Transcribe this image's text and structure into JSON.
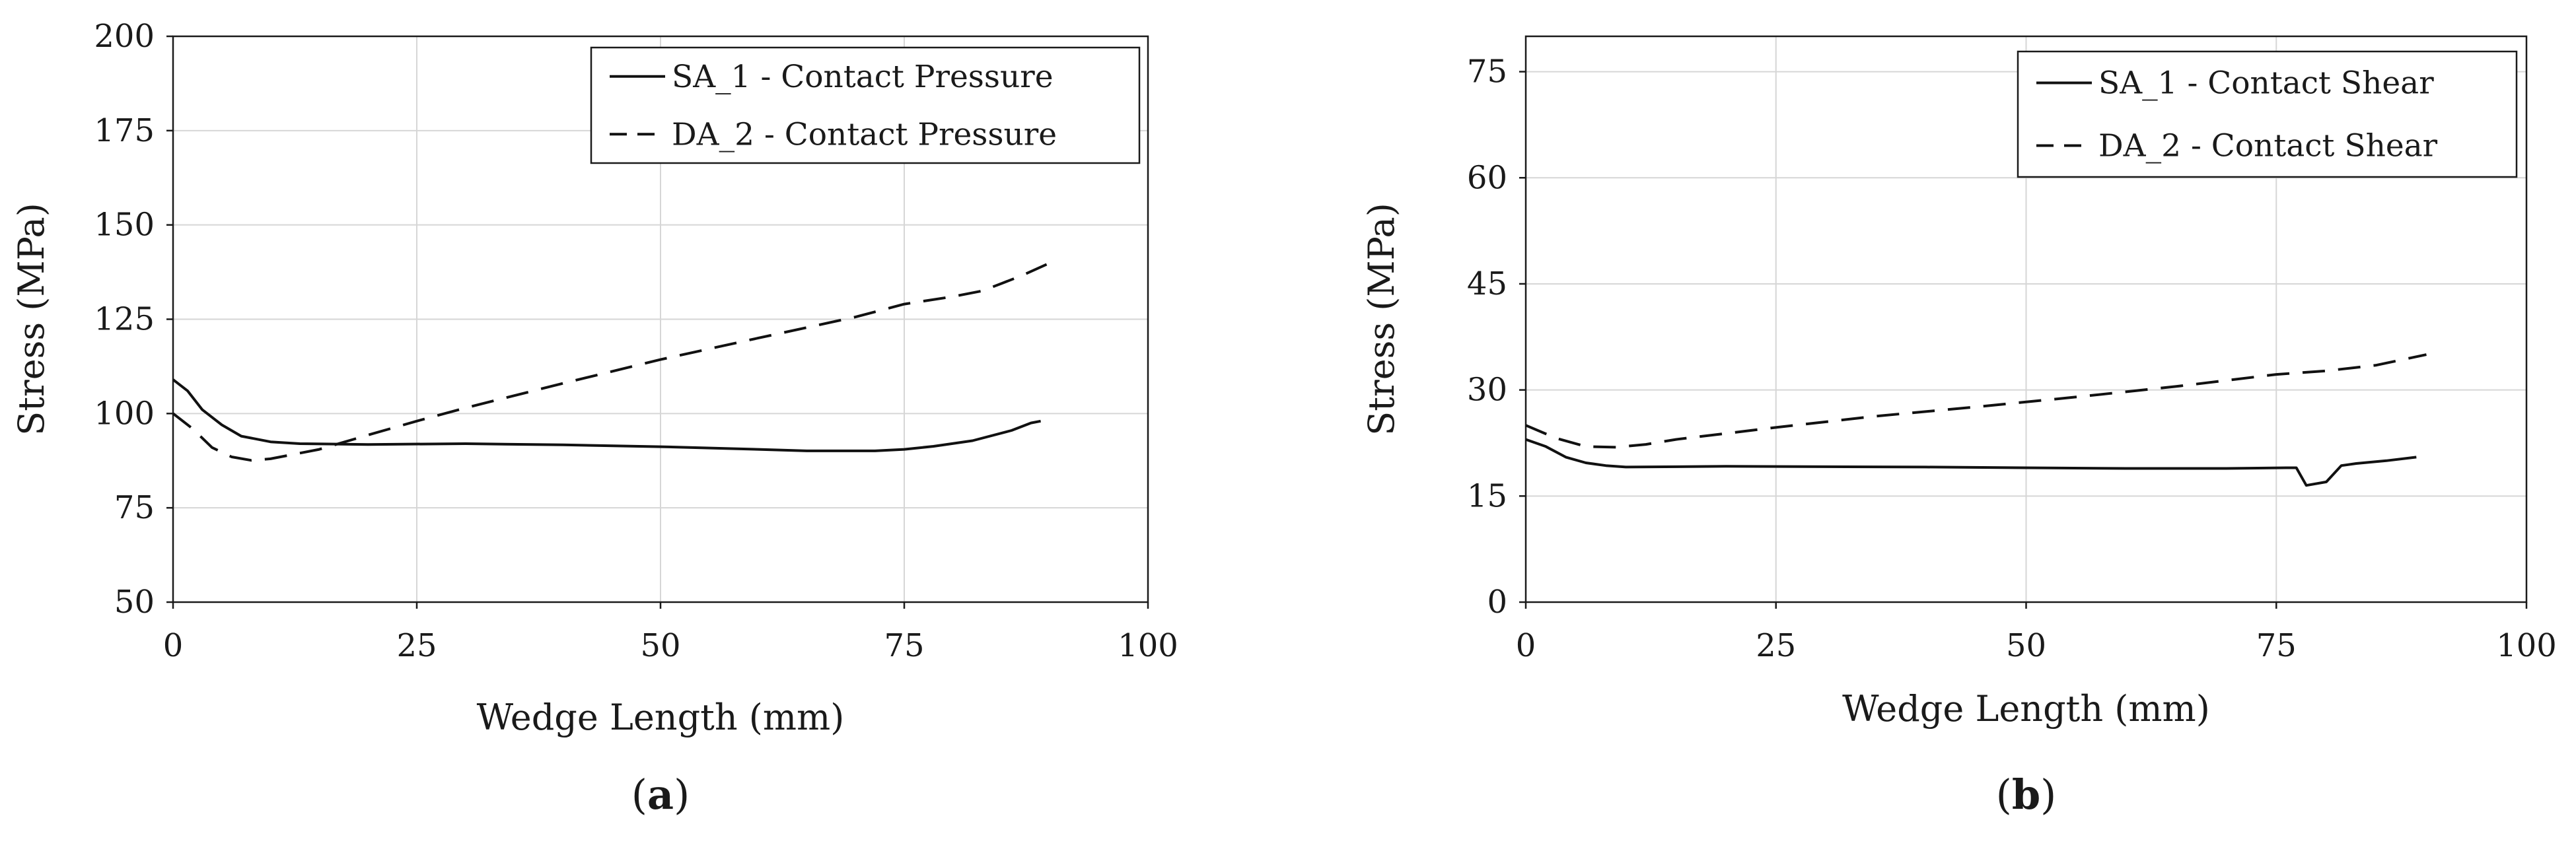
{
  "chart_data": [
    {
      "panel_label": "a",
      "type": "line",
      "xlabel": "Wedge Length (mm)",
      "ylabel": "Stress (MPa)",
      "xlim": [
        0,
        100
      ],
      "ylim": [
        50,
        200
      ],
      "xticks": [
        0,
        25,
        50,
        75,
        100
      ],
      "yticks": [
        50,
        75,
        100,
        125,
        150,
        175,
        200
      ],
      "grid": true,
      "legend_position": "top-right",
      "series": [
        {
          "name": "SA_1 - Contact Pressure",
          "style": "solid",
          "points": [
            [
              0,
              109
            ],
            [
              1.5,
              106
            ],
            [
              3,
              101
            ],
            [
              5,
              97
            ],
            [
              7,
              94
            ],
            [
              10,
              92.5
            ],
            [
              13,
              92
            ],
            [
              20,
              91.8
            ],
            [
              30,
              92
            ],
            [
              40,
              91.7
            ],
            [
              50,
              91.2
            ],
            [
              60,
              90.5
            ],
            [
              65,
              90.1
            ],
            [
              72,
              90.1
            ],
            [
              75,
              90.5
            ],
            [
              78,
              91.3
            ],
            [
              82,
              92.8
            ],
            [
              86,
              95.5
            ],
            [
              88,
              97.5
            ],
            [
              89,
              98
            ]
          ]
        },
        {
          "name": "DA_2 - Contact Pressure",
          "style": "dashed",
          "points": [
            [
              0,
              100
            ],
            [
              2,
              96
            ],
            [
              4,
              91
            ],
            [
              6,
              88.5
            ],
            [
              8,
              87.6
            ],
            [
              10,
              88
            ],
            [
              12,
              89
            ],
            [
              15,
              90.5
            ],
            [
              20,
              94.3
            ],
            [
              25,
              98
            ],
            [
              30,
              101.5
            ],
            [
              40,
              108
            ],
            [
              50,
              114.3
            ],
            [
              60,
              120
            ],
            [
              70,
              125.6
            ],
            [
              75,
              129
            ],
            [
              80,
              131
            ],
            [
              83,
              132.5
            ],
            [
              85,
              134.5
            ],
            [
              87,
              136.5
            ],
            [
              90,
              140
            ]
          ]
        }
      ]
    },
    {
      "panel_label": "b",
      "type": "line",
      "xlabel": "Wedge Length (mm)",
      "ylabel": "Stress (MPa)",
      "xlim": [
        0,
        100
      ],
      "ylim": [
        0,
        80
      ],
      "xticks": [
        0,
        25,
        50,
        75,
        100
      ],
      "yticks": [
        0,
        15,
        30,
        45,
        60,
        75
      ],
      "grid": true,
      "legend_position": "top-right",
      "series": [
        {
          "name": "SA_1 - Contact Shear",
          "style": "solid",
          "points": [
            [
              0,
              23
            ],
            [
              2,
              22
            ],
            [
              4,
              20.5
            ],
            [
              6,
              19.7
            ],
            [
              8,
              19.3
            ],
            [
              10,
              19.1
            ],
            [
              20,
              19.2
            ],
            [
              40,
              19.1
            ],
            [
              60,
              18.9
            ],
            [
              70,
              18.9
            ],
            [
              76,
              19
            ],
            [
              77,
              19
            ],
            [
              78,
              16.5
            ],
            [
              80,
              17
            ],
            [
              81.5,
              19.3
            ],
            [
              83,
              19.6
            ],
            [
              86,
              20
            ],
            [
              89,
              20.5
            ]
          ]
        },
        {
          "name": "DA_2 - Contact Shear",
          "style": "dashed",
          "points": [
            [
              0,
              25
            ],
            [
              3,
              23.2
            ],
            [
              6,
              22
            ],
            [
              9,
              21.9
            ],
            [
              12,
              22.3
            ],
            [
              15,
              23
            ],
            [
              25,
              24.7
            ],
            [
              35,
              26.3
            ],
            [
              45,
              27.6
            ],
            [
              55,
              29
            ],
            [
              65,
              30.5
            ],
            [
              75,
              32.2
            ],
            [
              80,
              32.7
            ],
            [
              85,
              33.5
            ],
            [
              90,
              35
            ]
          ]
        }
      ]
    }
  ]
}
